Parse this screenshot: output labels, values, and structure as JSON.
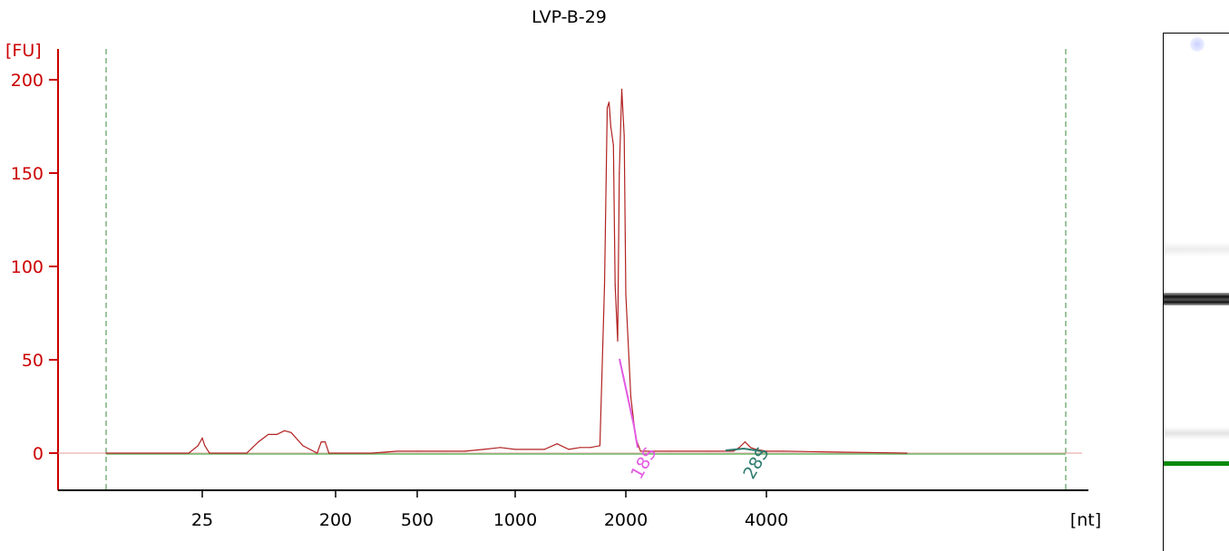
{
  "chart_data": {
    "type": "line",
    "title": "LVP-B-29",
    "ylabel": "[FU]",
    "xlabel": "[nt]",
    "x_scale": "ladder (nonlinear)",
    "ylim": [
      -20,
      220
    ],
    "y_ticks": [
      0,
      50,
      100,
      150,
      200
    ],
    "x_ticks": [
      25,
      200,
      500,
      1000,
      2000,
      4000
    ],
    "grid": false,
    "series": [
      {
        "x": [
          10,
          22,
          24,
          25,
          26,
          28,
          50,
          60,
          70,
          80,
          90,
          100,
          120,
          150,
          160,
          170,
          180,
          200,
          300,
          400,
          500,
          600,
          700,
          800,
          900,
          1000,
          1100,
          1200,
          1300,
          1400,
          1500,
          1600,
          1700,
          1750,
          1780,
          1800,
          1820,
          1850,
          1870,
          1900,
          1920,
          1950,
          1980,
          2000,
          2050,
          2100,
          2150,
          2200,
          2500,
          3000,
          3400,
          3500,
          3600,
          3700,
          3800,
          4000,
          4200,
          6000
        ],
        "y": [
          0,
          0,
          4,
          8,
          4,
          0,
          0,
          6,
          10,
          10,
          12,
          11,
          4,
          0,
          6,
          6,
          0,
          0,
          0,
          1,
          1,
          1,
          1,
          2,
          3,
          2,
          2,
          2,
          5,
          2,
          3,
          3,
          4,
          90,
          185,
          188,
          175,
          165,
          90,
          60,
          150,
          195,
          170,
          85,
          30,
          8,
          1,
          1,
          1,
          1,
          1,
          3,
          6,
          3,
          2,
          1,
          1,
          0
        ]
      }
    ],
    "annotations": [
      {
        "label": "18S",
        "x": 2000
      },
      {
        "label": "28S",
        "x": 3700
      }
    ]
  },
  "colors": {
    "trace": "#b22222",
    "axis": "#cc0000",
    "baseline": "#6fbf6f",
    "marker_18s": "#e35be3",
    "marker_28s": "#2e7b6e",
    "dashed": "#3a8a3a",
    "lower_marker_band": "#0a8a0a"
  }
}
